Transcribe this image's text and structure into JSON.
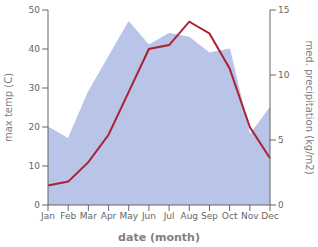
{
  "chart_data": {
    "type": "line",
    "categories": [
      "Jan",
      "Feb",
      "Mar",
      "Apr",
      "May",
      "Jun",
      "Jul",
      "Aug",
      "Sep",
      "Oct",
      "Nov",
      "Dec"
    ],
    "series": [
      {
        "type": "area",
        "color": "#b8c4e8",
        "values": [
          20,
          17,
          29,
          38,
          47,
          41,
          44,
          43,
          39,
          40,
          18,
          25
        ]
      },
      {
        "type": "line",
        "color": "#aa2233",
        "values": [
          5,
          6,
          11,
          18,
          29,
          40,
          41,
          47,
          44,
          35,
          20,
          12
        ]
      }
    ],
    "xlabel": "date (month)",
    "ylabel": "max temp (C)",
    "y2label": "med. precipitation (kg/m2)",
    "ylim": [
      0,
      50
    ],
    "yticks": [
      0,
      10,
      20,
      30,
      40,
      50
    ],
    "y2lim": [
      0,
      15
    ],
    "y2ticks": [
      0,
      5,
      10,
      15
    ],
    "grid": false
  }
}
